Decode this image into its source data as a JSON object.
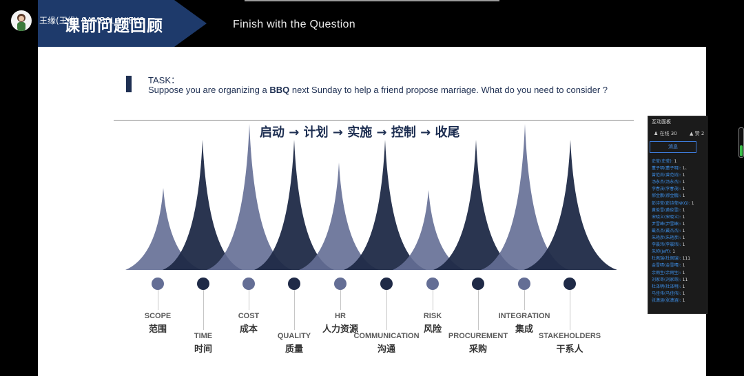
{
  "header": {
    "banner_title": "课前问题回顾",
    "subtitle": "Finish with the Question",
    "user_name": "王缘(王缘) SAMB0L  WJEKO"
  },
  "slide": {
    "task_label": "TASK：",
    "task_before": "Suppose you are organizing a ",
    "task_bold": "BBQ",
    "task_after": " next Sunday to help a friend propose marriage. What do you need to consider ?",
    "process": "启动 → 计划 → 实施 → 控制 → 收尾",
    "areas": [
      {
        "en": "SCOPE",
        "cn": "范围",
        "tone": "light"
      },
      {
        "en": "TIME",
        "cn": "时间",
        "tone": "dark"
      },
      {
        "en": "COST",
        "cn": "成本",
        "tone": "light"
      },
      {
        "en": "QUALITY",
        "cn": "质量",
        "tone": "dark"
      },
      {
        "en": "HR",
        "cn": "人力资源",
        "tone": "light"
      },
      {
        "en": "COMMUNICATION",
        "cn": "沟通",
        "tone": "dark"
      },
      {
        "en": "RISK",
        "cn": "风险",
        "tone": "light"
      },
      {
        "en": "PROCUREMENT",
        "cn": "采购",
        "tone": "dark"
      },
      {
        "en": "INTEGRATION",
        "cn": "集成",
        "tone": "light"
      },
      {
        "en": "STAKEHOLDERS",
        "cn": "干系人",
        "tone": "dark"
      }
    ]
  },
  "panel": {
    "title": "互动面板",
    "participants": "30",
    "likes": "2",
    "tab_messages": "消息",
    "messages": [
      {
        "name": "史莹(史莹)",
        "text": "1"
      },
      {
        "name": "董子明(董子明)",
        "text": "1、"
      },
      {
        "name": "曾范尚(曾范尚)",
        "text": "1"
      },
      {
        "name": "汤永杰(汤永杰)",
        "text": "1"
      },
      {
        "name": "李春茂(李春茂)",
        "text": "1"
      },
      {
        "name": "郝金鹏(郝金鹏)",
        "text": "1"
      },
      {
        "name": "彭诗莹(彭诗莹NKG)",
        "text": "1"
      },
      {
        "name": "黄俊雪(黄俊雪)",
        "text": "1"
      },
      {
        "name": "宋晓义(宋晓义)",
        "text": "1"
      },
      {
        "name": "尹雪峰(尹雪峰)",
        "text": "1"
      },
      {
        "name": "戴杰杰(戴杰杰)",
        "text": "1"
      },
      {
        "name": "朱艳彦(朱艳彦)",
        "text": "1"
      },
      {
        "name": "李晨玮(李晨玮)",
        "text": "1"
      },
      {
        "name": "朱帅(Jeff)",
        "text": "1"
      },
      {
        "name": "杜佩瑞(杜佩瑞)",
        "text": "111"
      },
      {
        "name": "金雪晴(金雪晴)",
        "text": "1"
      },
      {
        "name": "余雨生(余雨生)",
        "text": "1"
      },
      {
        "name": "刘家哥(刘家哥)",
        "text": "11"
      },
      {
        "name": "杜泽明(杜泽明)",
        "text": "1"
      },
      {
        "name": "马佳伟(马佳伟)",
        "text": "1"
      },
      {
        "name": "张潇涵(张潇涵)",
        "text": "1"
      }
    ]
  },
  "colors": {
    "navy": "#1e2f52",
    "mid": "#646e95",
    "dark": "#1f2a47"
  }
}
